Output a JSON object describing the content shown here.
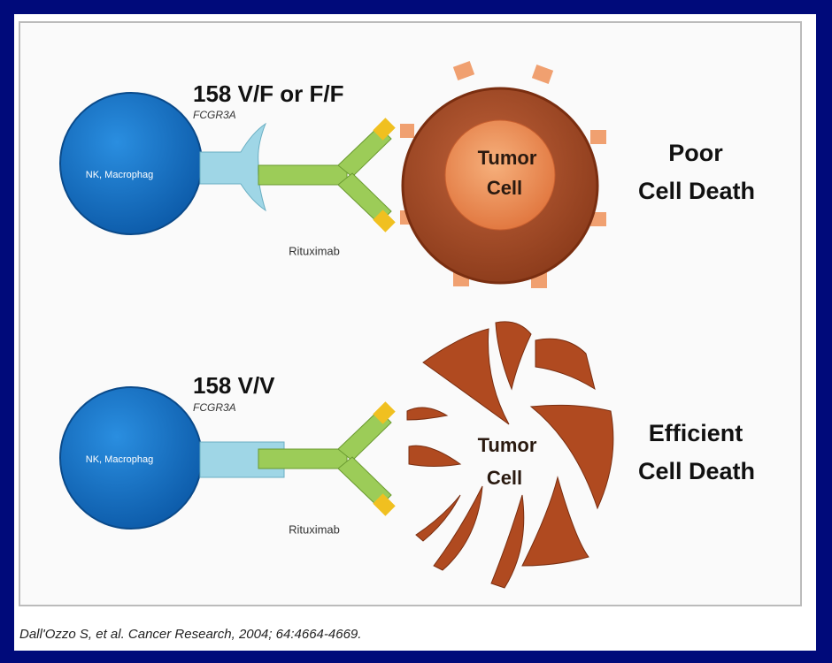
{
  "panels": [
    {
      "genotype": "158 V/F or F/F",
      "gene": "FCGR3A",
      "effector": "NK, Macrophag",
      "antibody": "Rituximab",
      "tumor_lines": [
        "Tumor",
        "Cell"
      ],
      "outcome_lines": [
        "Poor",
        "Cell Death"
      ]
    },
    {
      "genotype": "158 V/V",
      "gene": "FCGR3A",
      "effector": "NK, Macrophag",
      "antibody": "Rituximab",
      "tumor_lines": [
        "Tumor",
        "Cell"
      ],
      "outcome_lines": [
        "Efficient",
        "Cell Death"
      ]
    }
  ],
  "citation": "Dall'Ozzo S, et al. Cancer Research, 2004; 64:4664-4669."
}
